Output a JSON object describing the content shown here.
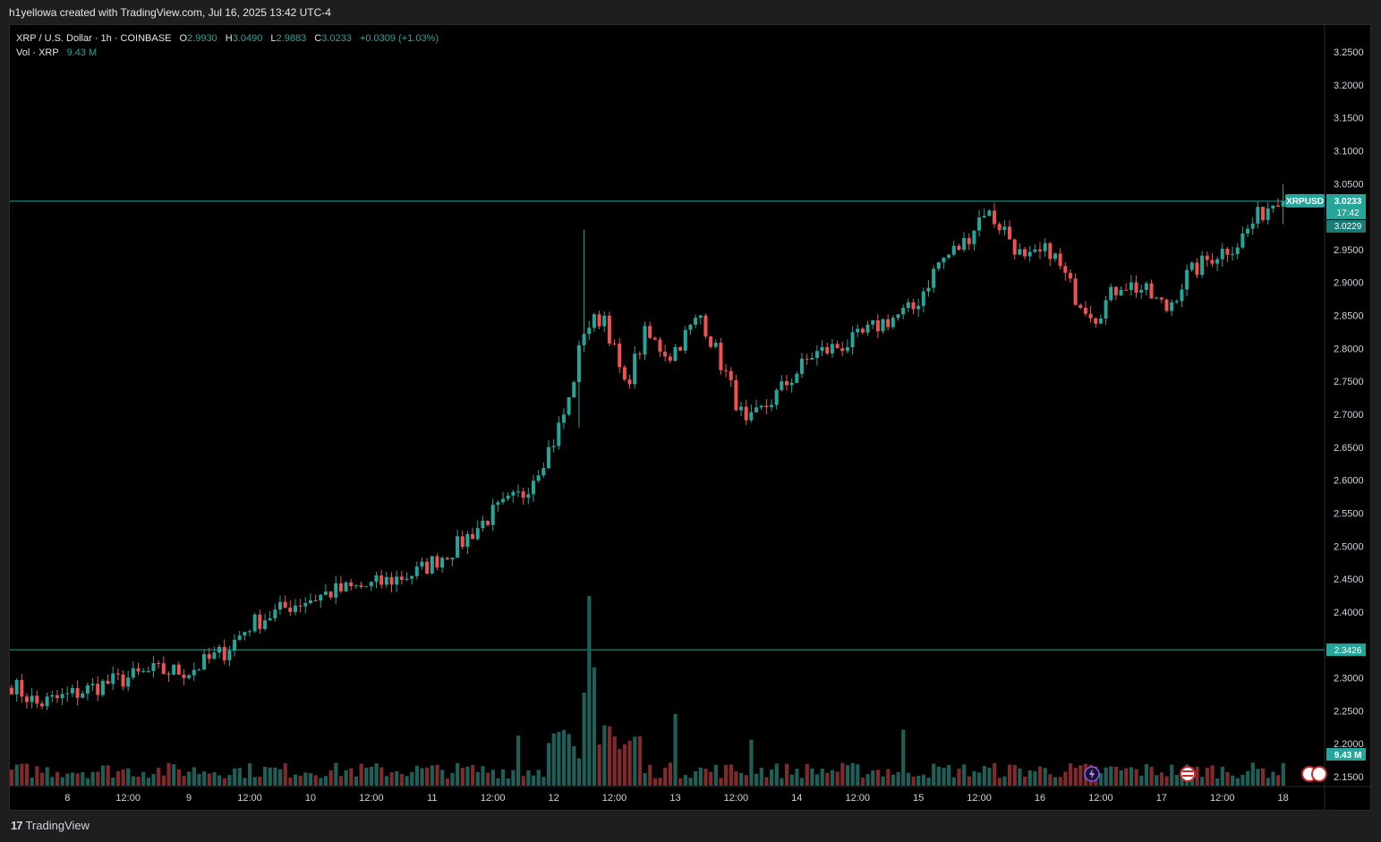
{
  "credit": "h1yellowa created with TradingView.com, Jul 16, 2025 13:42 UTC-4",
  "legend": {
    "symbol": "XRP / U.S. Dollar · 1h · COINBASE",
    "o_label": "O",
    "o": "2.9930",
    "h_label": "H",
    "h": "3.0490",
    "l_label": "L",
    "l": "2.9883",
    "c_label": "C",
    "c": "3.0233",
    "change": "+0.0309 (+1.03%)",
    "vol_label": "Vol · XRP",
    "vol_value": "9.43 M"
  },
  "price_label": {
    "symbol": "XRPUSD",
    "price": "3.0233",
    "countdown": "17:42",
    "second_price": "3.0229"
  },
  "level_label": "2.3426",
  "volume_label": "9.43 M",
  "branding": "TradingView",
  "colors": {
    "up": "#26a69a",
    "down": "#ef5350",
    "vol_up": "#1f5f58",
    "vol_down": "#7f2b2b",
    "line": "#26a69a"
  },
  "icons": [
    "flag-icon",
    "lightning-icon",
    "us-flag-icon"
  ],
  "chart_data": {
    "type": "candlestick",
    "title": "XRP / U.S. Dollar · 1h · COINBASE",
    "ylim": [
      2.14,
      3.28
    ],
    "y_ticks": [
      "3.2500",
      "3.2000",
      "3.1500",
      "3.1000",
      "3.0500",
      "2.9500",
      "2.9000",
      "2.8500",
      "2.8000",
      "2.7500",
      "2.7000",
      "2.6500",
      "2.6000",
      "2.5500",
      "2.5000",
      "2.4500",
      "2.4000",
      "2.3000",
      "2.2500",
      "2.2000",
      "2.1500"
    ],
    "x_ticks": [
      "8",
      "12:00",
      "9",
      "12:00",
      "10",
      "12:00",
      "11",
      "12:00",
      "12",
      "12:00",
      "13",
      "12:00",
      "14",
      "12:00",
      "15",
      "12:00",
      "16",
      "12:00",
      "17",
      "12:00",
      "18"
    ],
    "x_range_hours": [
      "Jul 7 13:00",
      "Jul 18 19:00"
    ],
    "horizontal_lines": [
      3.0233,
      2.3426
    ],
    "anchors": [
      [
        0,
        2.29
      ],
      [
        5,
        2.26
      ],
      [
        10,
        2.27
      ],
      [
        18,
        2.29
      ],
      [
        28,
        2.31
      ],
      [
        35,
        2.31
      ],
      [
        42,
        2.34
      ],
      [
        47,
        2.38
      ],
      [
        55,
        2.41
      ],
      [
        63,
        2.43
      ],
      [
        71,
        2.44
      ],
      [
        80,
        2.46
      ],
      [
        88,
        2.5
      ],
      [
        95,
        2.55
      ],
      [
        101,
        2.58
      ],
      [
        107,
        2.66
      ],
      [
        110,
        2.72
      ],
      [
        113,
        2.83
      ],
      [
        117,
        2.85
      ],
      [
        121,
        2.74
      ],
      [
        125,
        2.82
      ],
      [
        130,
        2.79
      ],
      [
        136,
        2.85
      ],
      [
        141,
        2.76
      ],
      [
        145,
        2.68
      ],
      [
        151,
        2.73
      ],
      [
        158,
        2.79
      ],
      [
        166,
        2.81
      ],
      [
        172,
        2.84
      ],
      [
        178,
        2.86
      ],
      [
        183,
        2.93
      ],
      [
        188,
        2.96
      ],
      [
        192,
        3.01
      ],
      [
        196,
        2.98
      ],
      [
        200,
        2.93
      ],
      [
        205,
        2.95
      ],
      [
        210,
        2.88
      ],
      [
        214,
        2.85
      ],
      [
        219,
        2.9
      ],
      [
        223,
        2.89
      ],
      [
        228,
        2.86
      ],
      [
        232,
        2.91
      ],
      [
        237,
        2.94
      ],
      [
        242,
        2.96
      ],
      [
        246,
        3.0
      ],
      [
        250,
        3.03
      ]
    ],
    "volume_spike_hour": 114,
    "series": []
  }
}
